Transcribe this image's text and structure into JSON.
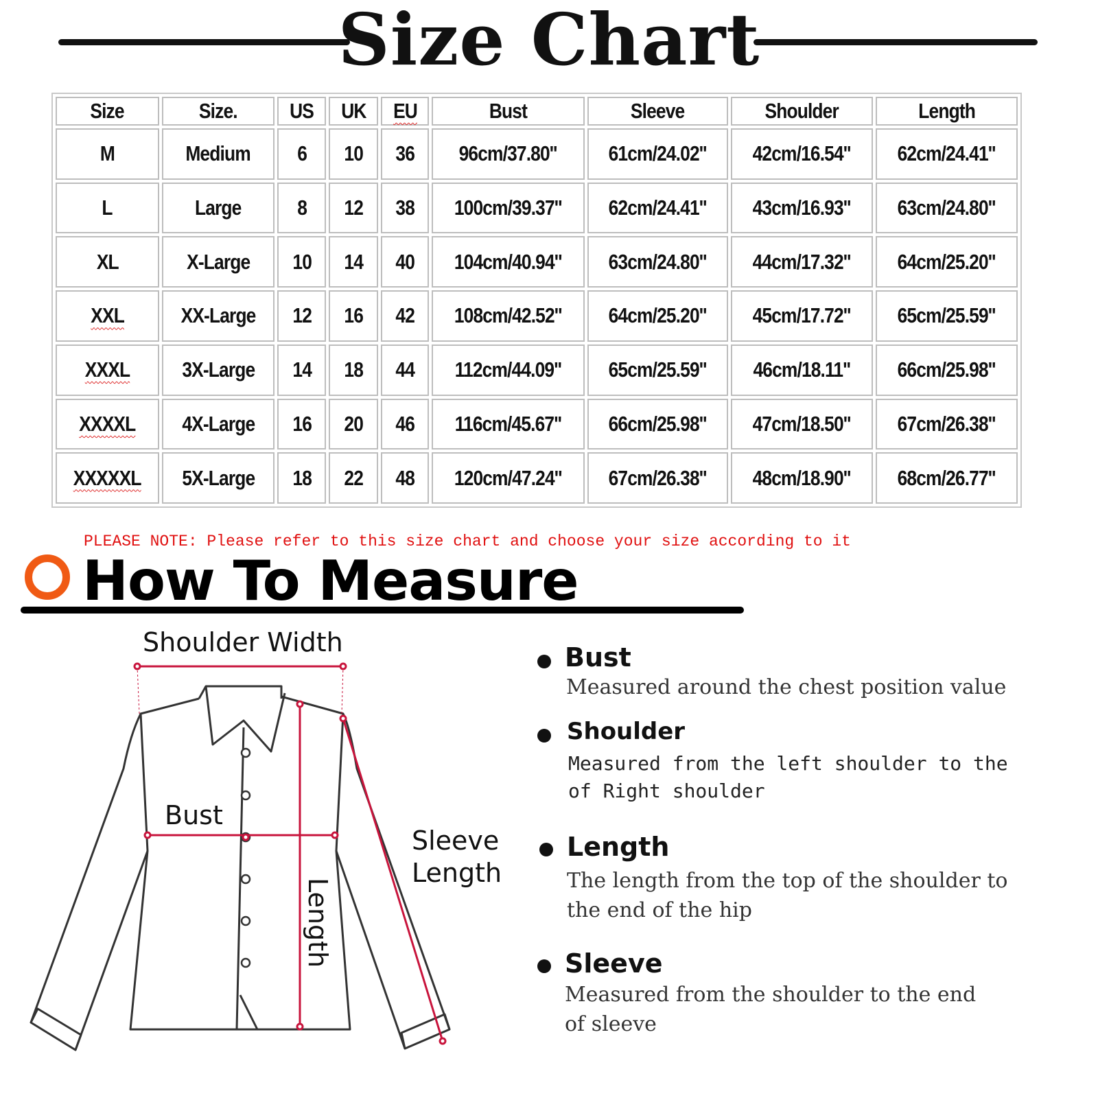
{
  "title": "Size Chart",
  "table": {
    "headers": [
      "Size",
      "Size.",
      "US",
      "UK",
      "EU",
      "Bust",
      "Sleeve",
      "Shoulder",
      "Length"
    ],
    "rows": [
      [
        "M",
        "Medium",
        "6",
        "10",
        "36",
        "96cm/37.80''",
        "61cm/24.02''",
        "42cm/16.54''",
        "62cm/24.41''"
      ],
      [
        "L",
        "Large",
        "8",
        "12",
        "38",
        "100cm/39.37''",
        "62cm/24.41''",
        "43cm/16.93''",
        "63cm/24.80''"
      ],
      [
        "XL",
        "X-Large",
        "10",
        "14",
        "40",
        "104cm/40.94''",
        "63cm/24.80''",
        "44cm/17.32''",
        "64cm/25.20''"
      ],
      [
        "XXL",
        "XX-Large",
        "12",
        "16",
        "42",
        "108cm/42.52''",
        "64cm/25.20''",
        "45cm/17.72''",
        "65cm/25.59''"
      ],
      [
        "XXXL",
        "3X-Large",
        "14",
        "18",
        "44",
        "112cm/44.09''",
        "65cm/25.59''",
        "46cm/18.11''",
        "66cm/25.98''"
      ],
      [
        "XXXXL",
        "4X-Large",
        "16",
        "20",
        "46",
        "116cm/45.67''",
        "66cm/25.98''",
        "47cm/18.50''",
        "67cm/26.38''"
      ],
      [
        "XXXXXL",
        "5X-Large",
        "18",
        "22",
        "48",
        "120cm/47.24''",
        "67cm/26.38''",
        "48cm/18.90''",
        "68cm/26.77''"
      ]
    ]
  },
  "note": "PLEASE NOTE: Please refer to this size chart and choose your size according to it",
  "how_to_measure": {
    "title": "How To Measure",
    "diagram_labels": {
      "shoulder_width": "Shoulder Width",
      "bust": "Bust",
      "sleeve_line1": "Sleeve",
      "sleeve_line2": "Length",
      "length": "Length"
    },
    "items": [
      {
        "heading": "Bust",
        "lines": [
          "Measured around the chest position value"
        ]
      },
      {
        "heading": "Shoulder",
        "lines": [
          "Measured from the left shoulder to the",
          "of Right shoulder"
        ]
      },
      {
        "heading": "Length",
        "lines": [
          "The length from the top of the shoulder to",
          "the end of the hip"
        ]
      },
      {
        "heading": "Sleeve",
        "lines": [
          "Measured from the shoulder to the end",
          "of sleeve"
        ]
      }
    ]
  },
  "colors": {
    "accent_ring": "#f05a14",
    "note_text": "#e01010",
    "measure_lines": "#c8143c"
  }
}
